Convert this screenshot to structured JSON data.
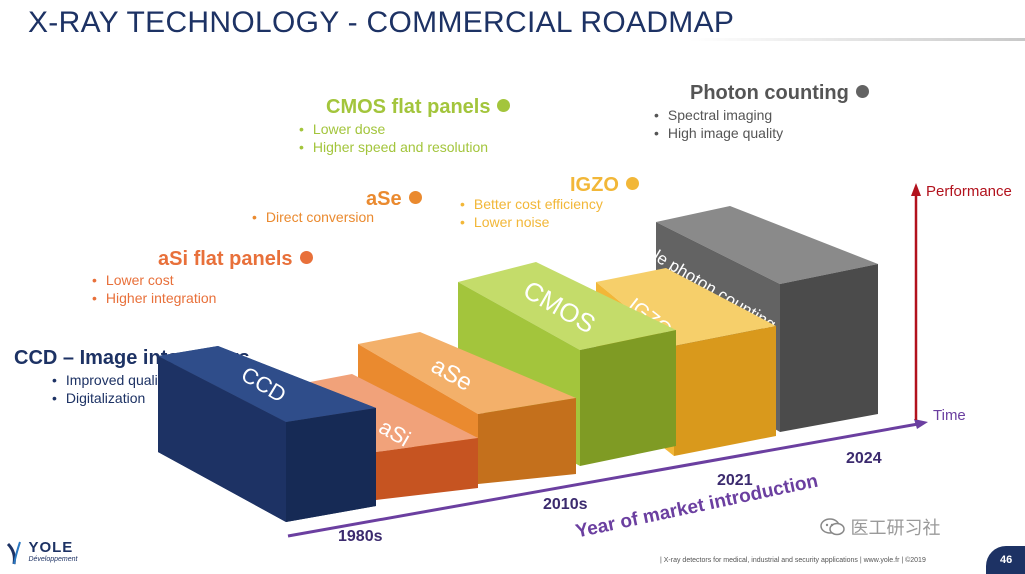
{
  "title": "X-RAY TECHNOLOGY - COMMERCIAL ROADMAP",
  "technologies": [
    {
      "key": "ccd",
      "caption": "CCD – Image intensifiers",
      "block_label": "CCD",
      "color": "#1d3264",
      "bullets": [
        "Improved quality",
        "Digitalization"
      ]
    },
    {
      "key": "asi",
      "caption": "aSi flat panels",
      "block_label": "aSi",
      "color": "#e8703a",
      "bullets": [
        "Lower cost",
        "Higher integration"
      ]
    },
    {
      "key": "ase",
      "caption": "aSe",
      "block_label": "aSe",
      "color": "#ea8a2f",
      "bullets": [
        "Direct conversion"
      ]
    },
    {
      "key": "cmos",
      "caption": "CMOS flat panels",
      "block_label": "CMOS",
      "color": "#a3c53c",
      "bullets": [
        "Lower dose",
        "Higher speed and resolution"
      ]
    },
    {
      "key": "igzo",
      "caption": "IGZO",
      "block_label": "IGZO",
      "color": "#f2b738",
      "bullets": [
        "Better cost efficiency",
        "Lower noise"
      ]
    },
    {
      "key": "photon",
      "caption": "Photon counting",
      "block_label": "Single photon counting",
      "color": "#636363",
      "bullets": [
        "Spectral imaging",
        "High image quality"
      ]
    }
  ],
  "axes": {
    "performance_label": "Performance",
    "time_label": "Time",
    "x_title": "Year of market introduction",
    "years": [
      "1980s",
      "2010s",
      "2021",
      "2024"
    ]
  },
  "footer": {
    "logo_text": "YOLE",
    "logo_subtext": "Développement",
    "source": "| X-ray detectors for medical, industrial and security applications | www.yole.fr | ©2019",
    "page_number": "46",
    "watermark": "医工研习社"
  }
}
